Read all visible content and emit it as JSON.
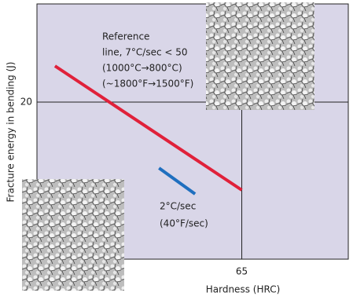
{
  "chart_data": {
    "type": "line",
    "x_label": "Hardness (HRC)",
    "y_label": "Fracture energy in bending (J)",
    "xlim": [
      40,
      78
    ],
    "ylim": [
      0,
      32.5
    ],
    "xticks": [
      65
    ],
    "yticks": [
      20
    ],
    "grid": true,
    "background": "#d9d6e8",
    "series": [
      {
        "color": "#e0213a",
        "x": [
          42.2,
          65
        ],
        "values": [
          24.6,
          8.8
        ]
      },
      {
        "color": "#1f6fbf",
        "x": [
          54.9,
          59.3
        ],
        "values": [
          11.6,
          8.3
        ]
      }
    ],
    "annotations": [
      "Reference",
      "line, 7°C/sec < 50",
      "(1000°C→800°C)",
      "(~1800°F→1500°F)",
      "2°C/sec",
      "(40°F/sec)"
    ]
  }
}
